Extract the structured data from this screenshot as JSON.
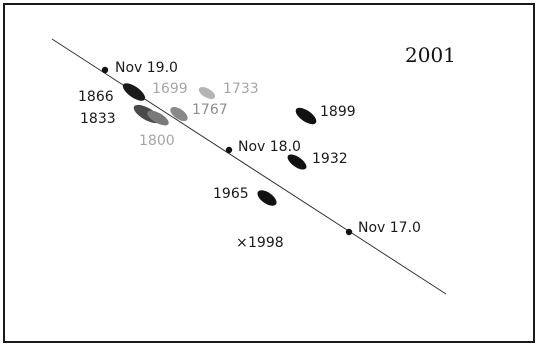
{
  "diagram": {
    "year_title": "2001",
    "colors": {
      "dark": "#1a1a1a",
      "mid": "#6b6b6b",
      "light": "#9c9c9c",
      "lighter": "#b4b4b4"
    },
    "path_markers": [
      {
        "label": "Nov 19.0"
      },
      {
        "label": "Nov 18.0"
      },
      {
        "label": "Nov 17.0"
      }
    ],
    "trails": [
      {
        "label": "1866"
      },
      {
        "label": "1833"
      },
      {
        "label": "1800"
      },
      {
        "label": "1699"
      },
      {
        "label": "1733"
      },
      {
        "label": "1767"
      },
      {
        "label": "1899"
      },
      {
        "label": "1932"
      },
      {
        "label": "1965"
      }
    ],
    "cross_point": {
      "label": "1998",
      "glyph": "×"
    }
  }
}
